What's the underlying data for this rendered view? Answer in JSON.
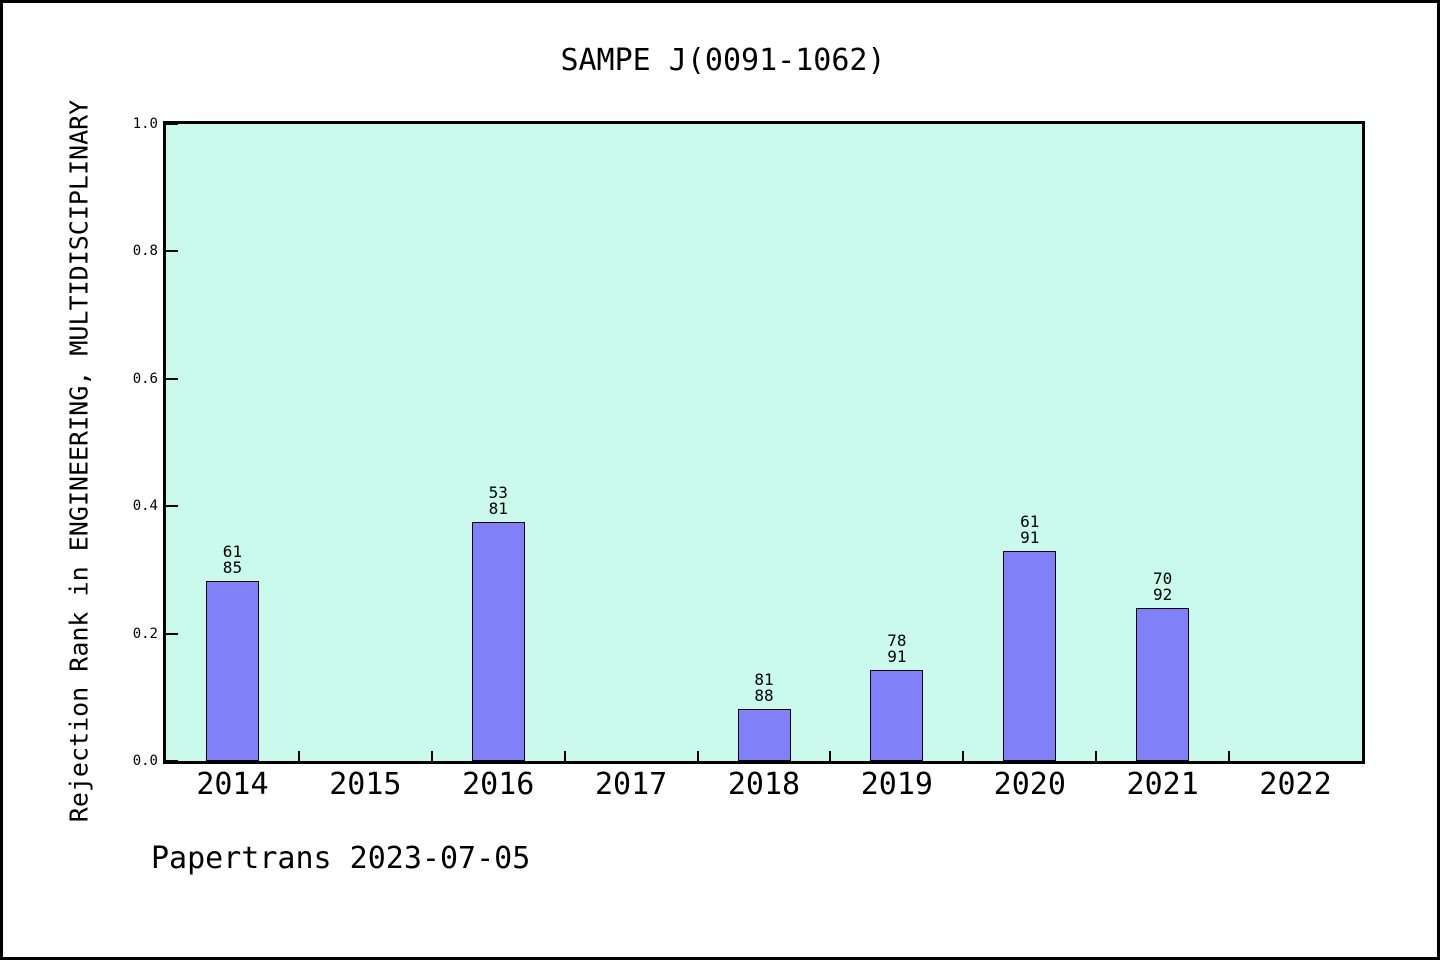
{
  "header": {
    "title": "SAMPE J(0091-1062)"
  },
  "footer": {
    "text": "Papertrans 2023-07-05"
  },
  "colors": {
    "plot_background": "#c9faec",
    "bar_fill": "#8080f8",
    "bar_border": "#000000",
    "frame": "#000000",
    "page_background": "#ffffff"
  },
  "chart_data": {
    "type": "bar",
    "title": "SAMPE J(0091-1062)",
    "xlabel": "",
    "ylabel": "Rejection Rank in ENGINEERING, MULTIDISCIPLINARY",
    "categories": [
      "2014",
      "2015",
      "2016",
      "2017",
      "2018",
      "2019",
      "2020",
      "2021",
      "2022"
    ],
    "values": [
      0.282,
      null,
      0.376,
      null,
      0.081,
      0.143,
      0.33,
      0.24,
      null
    ],
    "bar_labels": [
      [
        "61",
        "85"
      ],
      null,
      [
        "53",
        "81"
      ],
      null,
      [
        "81",
        "88"
      ],
      [
        "78",
        "91"
      ],
      [
        "61",
        "91"
      ],
      [
        "70",
        "92"
      ],
      null
    ],
    "ylim": [
      0.0,
      1.0
    ],
    "yticks": [
      {
        "value": 0.0,
        "label": "0.0"
      },
      {
        "value": 0.2,
        "label": "0.2"
      },
      {
        "value": 0.4,
        "label": "0.4"
      },
      {
        "value": 0.6,
        "label": "0.6"
      },
      {
        "value": 0.8,
        "label": "0.8"
      },
      {
        "value": 1.0,
        "label": "1.0"
      }
    ],
    "grid": false,
    "legend": false,
    "tick_direction": "in"
  }
}
